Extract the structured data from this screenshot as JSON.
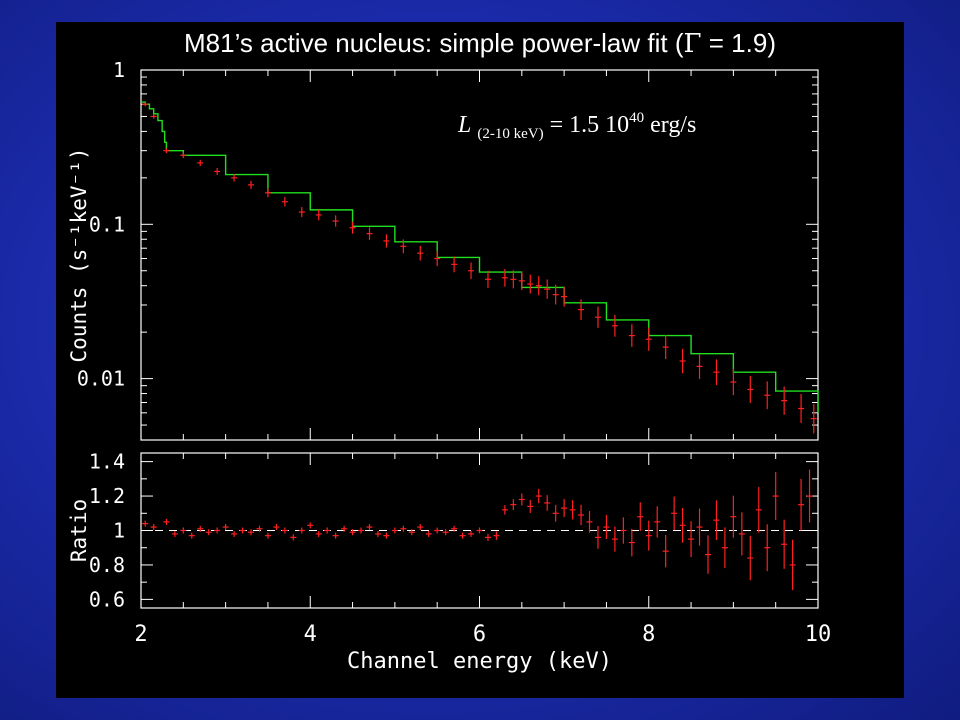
{
  "title": {
    "prefix": "M81’s active nucleus: simple power-law fit (",
    "symbol": "Γ",
    "suffix": " = 1.9)"
  },
  "annotation": {
    "symbol": "L",
    "subscript": "(2-10 keV)",
    "equals": " = 1.5 10",
    "exponent": "40",
    "unit": " erg/s"
  },
  "colors": {
    "background": "#1a2aa8",
    "panel": "#000000",
    "data": "#ff2020",
    "model": "#20e020",
    "axes": "#ffffff"
  },
  "chart_data": [
    {
      "type": "line",
      "yscale": "log",
      "xlim": [
        2,
        10
      ],
      "ylim": [
        0.004,
        1
      ],
      "ylabel": "Counts (s⁻¹keV⁻¹)",
      "ytick_labels": [
        "1",
        "0.1",
        "0.01"
      ],
      "yticks": [
        1,
        0.1,
        0.01
      ],
      "series": [
        {
          "kind": "model",
          "x": [
            2.0,
            2.05,
            2.1,
            2.15,
            2.2,
            2.25,
            2.28,
            2.3,
            2.5,
            3.0,
            3.5,
            4.0,
            4.5,
            5.0,
            5.5,
            6.0,
            6.5,
            7.0,
            7.5,
            8.0,
            8.5,
            9.0,
            9.5,
            10.0
          ],
          "y": [
            0.62,
            0.6,
            0.56,
            0.52,
            0.47,
            0.4,
            0.34,
            0.3,
            0.28,
            0.21,
            0.16,
            0.124,
            0.097,
            0.077,
            0.061,
            0.049,
            0.039,
            0.031,
            0.024,
            0.019,
            0.0145,
            0.011,
            0.0083,
            0.006
          ]
        },
        {
          "kind": "data",
          "x": [
            2.05,
            2.15,
            2.3,
            2.5,
            2.7,
            2.9,
            3.1,
            3.3,
            3.5,
            3.7,
            3.9,
            4.1,
            4.3,
            4.5,
            4.7,
            4.9,
            5.1,
            5.3,
            5.5,
            5.7,
            5.9,
            6.1,
            6.3,
            6.4,
            6.5,
            6.6,
            6.7,
            6.8,
            6.9,
            7.0,
            7.2,
            7.4,
            7.6,
            7.8,
            8.0,
            8.2,
            8.4,
            8.6,
            8.8,
            9.0,
            9.2,
            9.4,
            9.6,
            9.8,
            9.95
          ],
          "y": [
            0.6,
            0.5,
            0.3,
            0.28,
            0.25,
            0.22,
            0.2,
            0.18,
            0.16,
            0.14,
            0.12,
            0.115,
            0.105,
            0.095,
            0.087,
            0.078,
            0.072,
            0.065,
            0.06,
            0.055,
            0.05,
            0.044,
            0.045,
            0.044,
            0.043,
            0.041,
            0.04,
            0.038,
            0.035,
            0.034,
            0.028,
            0.025,
            0.022,
            0.019,
            0.018,
            0.016,
            0.013,
            0.012,
            0.011,
            0.0095,
            0.0085,
            0.0078,
            0.0072,
            0.0064,
            0.0055
          ]
        }
      ]
    },
    {
      "type": "line",
      "xlim": [
        2,
        10
      ],
      "ylim": [
        0.55,
        1.45
      ],
      "xlabel": "Channel energy (keV)",
      "ylabel": "Ratio",
      "xtick_labels": [
        "2",
        "4",
        "6",
        "8",
        "10"
      ],
      "xticks": [
        2,
        4,
        6,
        8,
        10
      ],
      "ytick_labels": [
        "1.4",
        "1.2",
        "1",
        "0.8",
        "0.6"
      ],
      "yticks": [
        1.4,
        1.2,
        1.0,
        0.8,
        0.6
      ],
      "reference_line": 1,
      "series": [
        {
          "kind": "ratio",
          "x": [
            2.05,
            2.15,
            2.3,
            2.4,
            2.5,
            2.6,
            2.7,
            2.8,
            2.9,
            3.0,
            3.1,
            3.2,
            3.3,
            3.4,
            3.5,
            3.6,
            3.7,
            3.8,
            3.9,
            4.0,
            4.1,
            4.2,
            4.3,
            4.4,
            4.5,
            4.6,
            4.7,
            4.8,
            4.9,
            5.0,
            5.1,
            5.2,
            5.3,
            5.4,
            5.5,
            5.6,
            5.7,
            5.8,
            5.9,
            6.0,
            6.1,
            6.2,
            6.3,
            6.4,
            6.5,
            6.6,
            6.7,
            6.8,
            6.9,
            7.0,
            7.1,
            7.2,
            7.3,
            7.4,
            7.5,
            7.6,
            7.7,
            7.8,
            7.9,
            8.0,
            8.1,
            8.2,
            8.3,
            8.4,
            8.5,
            8.6,
            8.7,
            8.8,
            8.9,
            9.0,
            9.1,
            9.2,
            9.3,
            9.4,
            9.5,
            9.6,
            9.7,
            9.8,
            9.9
          ],
          "y": [
            1.04,
            1.02,
            1.05,
            0.98,
            1.0,
            0.97,
            1.01,
            0.99,
            1.0,
            1.02,
            0.98,
            1.0,
            0.99,
            1.01,
            0.97,
            1.02,
            1.0,
            0.96,
            1.0,
            1.03,
            0.98,
            1.0,
            0.97,
            1.01,
            0.99,
            1.0,
            1.02,
            0.98,
            0.97,
            1.0,
            1.01,
            0.99,
            1.02,
            0.98,
            1.0,
            0.99,
            1.01,
            0.97,
            0.98,
            1.0,
            0.96,
            0.97,
            1.12,
            1.15,
            1.18,
            1.14,
            1.2,
            1.16,
            1.1,
            1.13,
            1.12,
            1.09,
            1.05,
            0.96,
            1.02,
            0.95,
            1.0,
            0.93,
            1.08,
            0.97,
            1.05,
            0.88,
            1.1,
            1.03,
            0.95,
            1.02,
            0.86,
            1.06,
            0.9,
            1.08,
            0.98,
            0.84,
            1.12,
            0.9,
            1.2,
            0.92,
            0.8,
            1.15,
            1.2
          ]
        }
      ]
    }
  ]
}
